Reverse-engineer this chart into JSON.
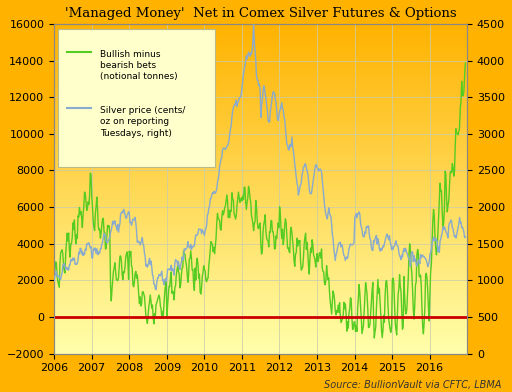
{
  "title": "'Managed Money'  Net in Comex Silver Futures & Options",
  "background_color": "#FFB300",
  "plot_bg_top": "#FFB300",
  "plot_bg_bottom": "#FFFFAA",
  "ylim_left": [
    -2000,
    16000
  ],
  "ylim_right": [
    0,
    4500
  ],
  "yticks_left": [
    -2000,
    0,
    2000,
    4000,
    6000,
    8000,
    10000,
    12000,
    14000,
    16000
  ],
  "yticks_right": [
    0,
    500,
    1000,
    1500,
    2000,
    2500,
    3000,
    3500,
    4000,
    4500
  ],
  "xticks": [
    2006,
    2007,
    2008,
    2009,
    2010,
    2011,
    2012,
    2013,
    2014,
    2015,
    2016
  ],
  "xlim": [
    2006,
    2017.0
  ],
  "source_text": "Source: BullionVault via CFTC, LBMA",
  "legend_green": [
    "Bullish minus",
    "bearish bets",
    "(notional tonnes)"
  ],
  "legend_blue": [
    "Silver price (cents/",
    "oz on reporting",
    "Tuesdays, right)"
  ],
  "green_color": "#55CC22",
  "blue_color": "#88AACE",
  "red_color": "#CC0000",
  "legend_bg": "#FFFFCC",
  "legend_border": "#BBBB88",
  "grid_color": "#CCCCAA"
}
